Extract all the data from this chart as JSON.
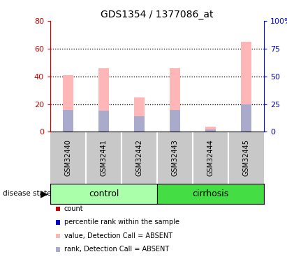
{
  "title": "GDS1354 / 1377086_at",
  "samples": [
    "GSM32440",
    "GSM32441",
    "GSM32442",
    "GSM32443",
    "GSM32444",
    "GSM32445"
  ],
  "value_absent": [
    41,
    46,
    25,
    46,
    3.5,
    65
  ],
  "rank_absent": [
    16,
    15,
    11,
    16,
    1.5,
    20
  ],
  "ylim_left": [
    0,
    80
  ],
  "ylim_right": [
    0,
    100
  ],
  "yticks_left": [
    0,
    20,
    40,
    60,
    80
  ],
  "yticks_right": [
    0,
    25,
    50,
    75,
    100
  ],
  "ytick_labels_right": [
    "0",
    "25",
    "50",
    "75",
    "100%"
  ],
  "color_value_absent": "#FFB6B6",
  "color_rank_absent": "#AAAACC",
  "color_count": "#CC0000",
  "color_percentile": "#0000CC",
  "control_color": "#AAFFAA",
  "cirrhosis_color": "#44DD44",
  "label_bg_color": "#C8C8C8",
  "left_axis_color": "#CC0000",
  "right_axis_color": "#0000CC",
  "legend_items": [
    {
      "label": "count",
      "color": "#CC0000"
    },
    {
      "label": "percentile rank within the sample",
      "color": "#0000CC"
    },
    {
      "label": "value, Detection Call = ABSENT",
      "color": "#FFB6B6"
    },
    {
      "label": "rank, Detection Call = ABSENT",
      "color": "#AAAACC"
    }
  ],
  "bar_width": 0.28,
  "n_control": 3,
  "n_cirrhosis": 3
}
